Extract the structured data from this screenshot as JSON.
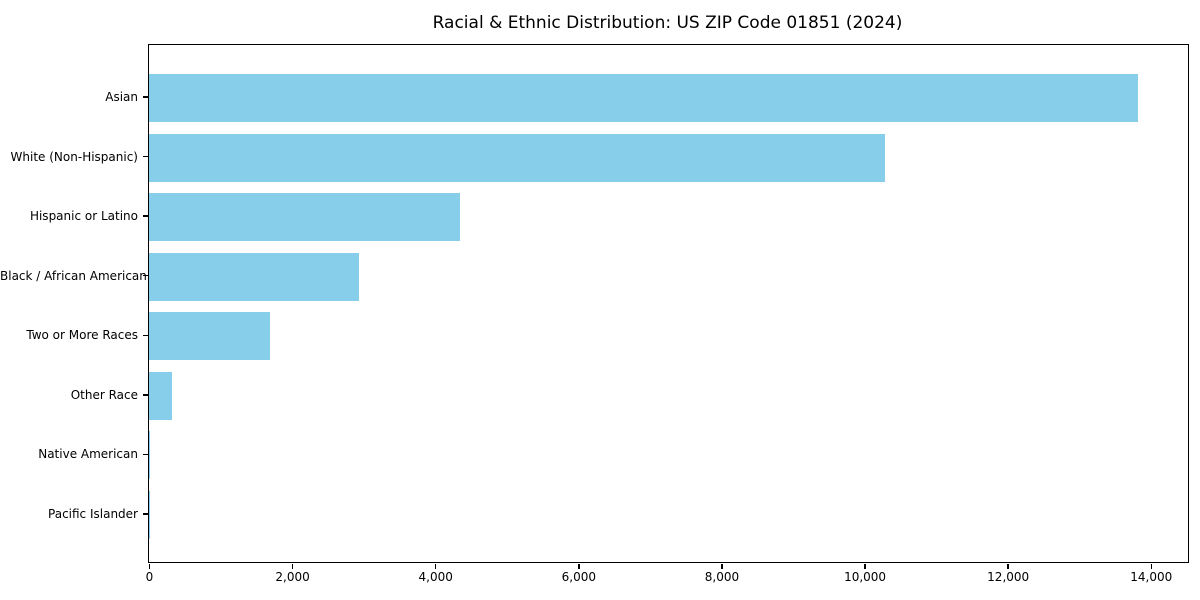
{
  "chart_data": {
    "type": "bar",
    "orientation": "horizontal",
    "title": "Racial & Ethnic Distribution: US ZIP Code 01851 (2024)",
    "categories": [
      "Asian",
      "White (Non-Hispanic)",
      "Hispanic or Latino",
      "Black / African American",
      "Two or More Races",
      "Other Race",
      "Native American",
      "Pacific Islander"
    ],
    "values": [
      13820,
      10280,
      4345,
      2930,
      1695,
      320,
      20,
      8
    ],
    "xlabel": "",
    "ylabel": "",
    "xlim": [
      0,
      14520
    ],
    "xticks": [
      {
        "value": 0,
        "label": "0"
      },
      {
        "value": 2000,
        "label": "2,000"
      },
      {
        "value": 4000,
        "label": "4,000"
      },
      {
        "value": 6000,
        "label": "6,000"
      },
      {
        "value": 8000,
        "label": "8,000"
      },
      {
        "value": 10000,
        "label": "10,000"
      },
      {
        "value": 12000,
        "label": "12,000"
      },
      {
        "value": 14000,
        "label": "14,000"
      }
    ],
    "grid": false,
    "legend": null,
    "bar_color": "#87CEEB",
    "axis_color": "#000000",
    "background_color": "#FFFFFF"
  }
}
